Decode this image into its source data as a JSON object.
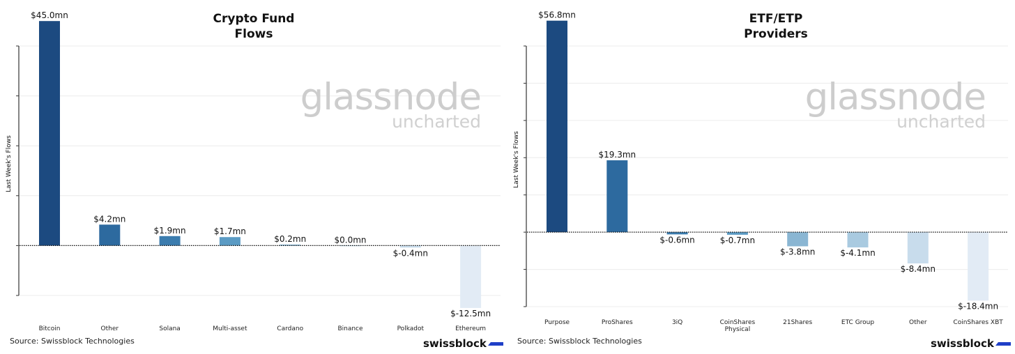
{
  "chart_data": [
    {
      "type": "bar",
      "title": "Crypto Fund\nFlows",
      "ylabel": "Last Week's Flows",
      "categories": [
        "Bitcoin",
        "Other",
        "Solana",
        "Multi-asset",
        "Cardano",
        "Binance",
        "Polkadot",
        "Ethereum"
      ],
      "values": [
        45.0,
        4.2,
        1.9,
        1.7,
        0.2,
        0.0,
        -0.4,
        -12.5
      ],
      "data_labels": [
        "$45.0mn",
        "$4.2mn",
        "$1.9mn",
        "$1.7mn",
        "$0.2mn",
        "$0.0mn",
        "$-0.4mn",
        "$-12.5mn"
      ],
      "colors": [
        "#1c4a80",
        "#2d6a9f",
        "#3b7cae",
        "#5b9bc4",
        "#7fb2d2",
        "#a6c8df",
        "#c8dcec",
        "#e2ebf5"
      ],
      "ylim": [
        -10,
        40
      ],
      "grid": true,
      "watermark": {
        "main": "glassnode",
        "sub": "uncharted"
      },
      "source": "Source: Swissblock Technologies",
      "brand": "swissblock"
    },
    {
      "type": "bar",
      "title": "ETF/ETP\nProviders",
      "ylabel": "Last Week's Flows",
      "categories": [
        "Purpose",
        "ProShares",
        "3iQ",
        "CoinShares\nPhysical",
        "21Shares",
        "ETC Group",
        "Other",
        "CoinShares XBT"
      ],
      "values": [
        56.8,
        19.3,
        -0.6,
        -0.7,
        -3.8,
        -4.1,
        -8.4,
        -18.4
      ],
      "data_labels": [
        "$56.8mn",
        "$19.3mn",
        "$-0.6mn",
        "$-0.7mn",
        "$-3.8mn",
        "$-4.1mn",
        "$-8.4mn",
        "$-18.4mn"
      ],
      "colors": [
        "#1c4a80",
        "#2d6a9f",
        "#3b7cae",
        "#5b9bc4",
        "#8ab6d3",
        "#a9cae0",
        "#c8dcec",
        "#e2ebf5"
      ],
      "ylim": [
        -20,
        50
      ],
      "grid": true,
      "watermark": {
        "main": "glassnode",
        "sub": "uncharted"
      },
      "source": "Source: Swissblock Technologies",
      "brand": "swissblock"
    }
  ]
}
